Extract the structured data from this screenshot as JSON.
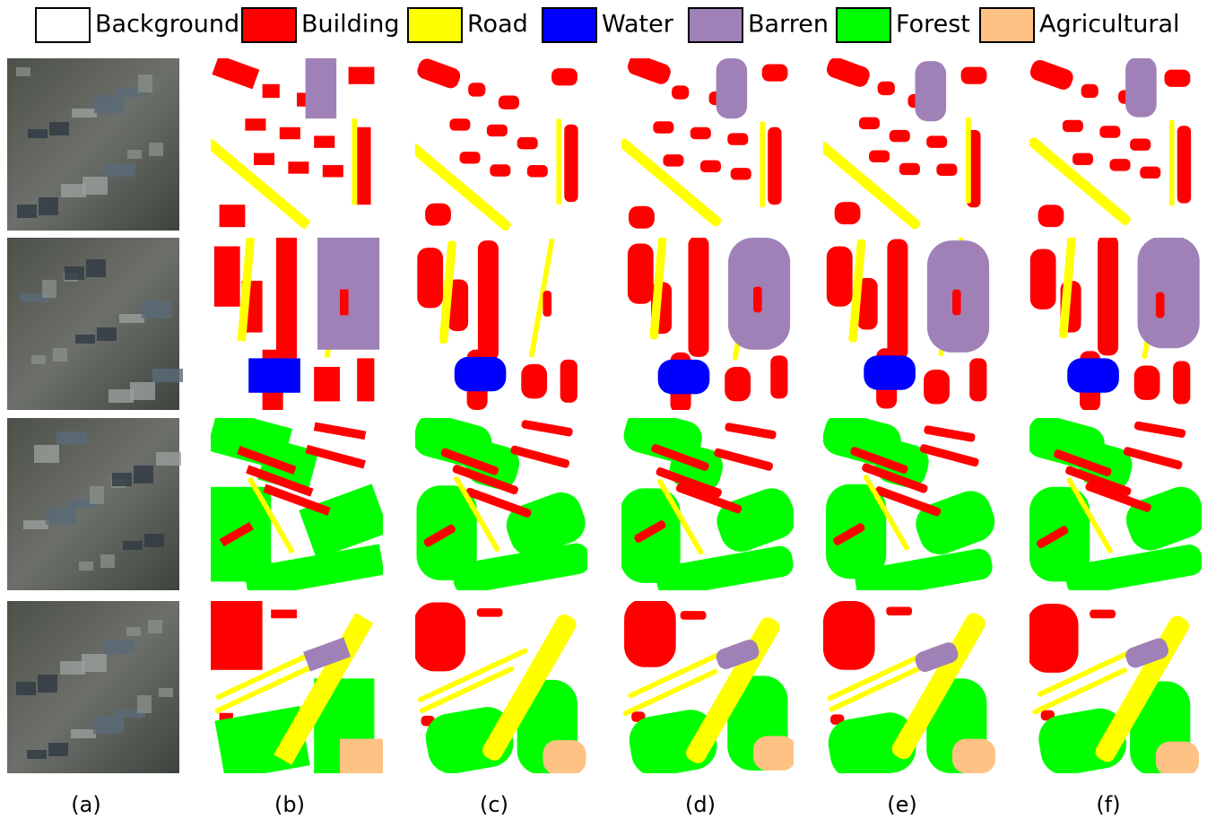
{
  "legend": [
    {
      "label": "Background",
      "color": "#ffffff"
    },
    {
      "label": "Building",
      "color": "#ff0000"
    },
    {
      "label": "Road",
      "color": "#ffff00"
    },
    {
      "label": "Water",
      "color": "#0000ff"
    },
    {
      "label": "Barren",
      "color": "#9f81b8"
    },
    {
      "label": "Forest",
      "color": "#00ff00"
    },
    {
      "label": "Agricultural",
      "color": "#ffc285"
    }
  ],
  "columns": {
    "labels": [
      "(a)",
      "(b)",
      "(c)",
      "(d)",
      "(e)",
      "(f)"
    ]
  }
}
